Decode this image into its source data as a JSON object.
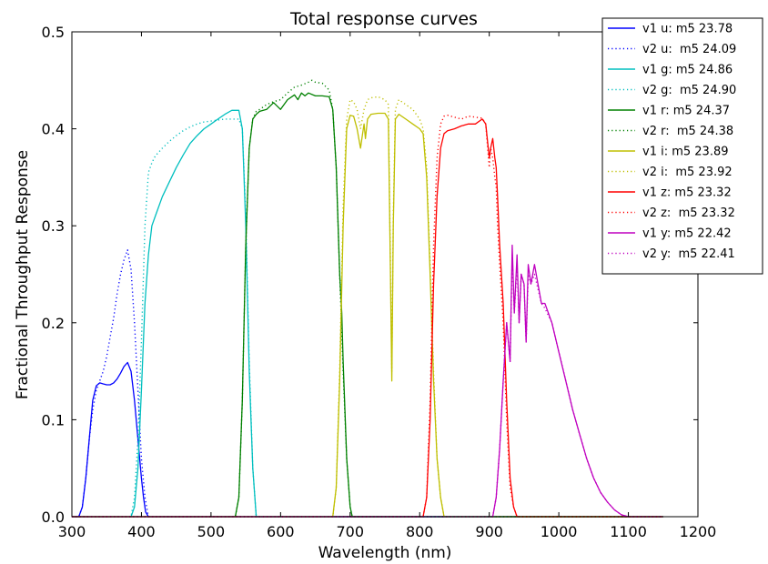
{
  "chart_data": {
    "type": "line",
    "title": "Total response curves",
    "xlabel": "Wavelength (nm)",
    "ylabel": "Fractional Throughput Response",
    "xlim": [
      300,
      1200
    ],
    "ylim": [
      0.0,
      0.5
    ],
    "xticks": [
      "300",
      "400",
      "500",
      "600",
      "700",
      "800",
      "900",
      "1000",
      "1100",
      "1200"
    ],
    "yticks": [
      "0.0",
      "0.1",
      "0.2",
      "0.3",
      "0.4",
      "0.5"
    ],
    "grid": false,
    "legend_position": "top-right",
    "series": [
      {
        "name": "v1 u: m5 23.78",
        "color": "#0000ff",
        "dash": "solid",
        "x": [
          300,
          310,
          315,
          320,
          325,
          330,
          335,
          340,
          345,
          350,
          355,
          360,
          365,
          370,
          375,
          380,
          385,
          390,
          395,
          400,
          403,
          406,
          410,
          1150
        ],
        "y": [
          0,
          0,
          0.01,
          0.04,
          0.08,
          0.12,
          0.135,
          0.138,
          0.137,
          0.136,
          0.136,
          0.138,
          0.142,
          0.148,
          0.155,
          0.159,
          0.15,
          0.12,
          0.08,
          0.04,
          0.02,
          0.005,
          0,
          0
        ]
      },
      {
        "name": "v2 u:  m5 24.09",
        "color": "#0000ff",
        "dash": "dotted",
        "x": [
          300,
          310,
          315,
          320,
          325,
          330,
          335,
          340,
          345,
          350,
          355,
          360,
          365,
          370,
          375,
          380,
          385,
          390,
          395,
          400,
          405,
          410,
          1150
        ],
        "y": [
          0,
          0,
          0.01,
          0.04,
          0.08,
          0.11,
          0.13,
          0.14,
          0.15,
          0.165,
          0.185,
          0.205,
          0.23,
          0.25,
          0.265,
          0.275,
          0.255,
          0.2,
          0.13,
          0.06,
          0.02,
          0,
          0
        ]
      },
      {
        "name": "v1 g: m5 24.86",
        "color": "#00bfbf",
        "dash": "solid",
        "x": [
          300,
          385,
          390,
          395,
          400,
          405,
          410,
          415,
          420,
          430,
          440,
          450,
          460,
          470,
          480,
          490,
          500,
          510,
          520,
          530,
          540,
          545,
          550,
          555,
          560,
          565,
          1150
        ],
        "y": [
          0,
          0,
          0.01,
          0.05,
          0.13,
          0.22,
          0.27,
          0.3,
          0.31,
          0.33,
          0.345,
          0.36,
          0.373,
          0.385,
          0.393,
          0.4,
          0.405,
          0.41,
          0.415,
          0.419,
          0.419,
          0.4,
          0.3,
          0.15,
          0.05,
          0,
          0
        ]
      },
      {
        "name": "v2 g:  m5 24.90",
        "color": "#00bfbf",
        "dash": "dotted",
        "x": [
          300,
          385,
          390,
          395,
          400,
          405,
          410,
          415,
          420,
          430,
          440,
          450,
          460,
          470,
          480,
          490,
          500,
          510,
          520,
          530,
          540,
          545,
          550,
          555,
          560,
          565,
          1150
        ],
        "y": [
          0,
          0,
          0.02,
          0.08,
          0.18,
          0.3,
          0.355,
          0.365,
          0.372,
          0.38,
          0.387,
          0.393,
          0.398,
          0.402,
          0.405,
          0.407,
          0.408,
          0.409,
          0.41,
          0.41,
          0.41,
          0.4,
          0.31,
          0.16,
          0.05,
          0,
          0
        ]
      },
      {
        "name": "v1 r: m5 24.37",
        "color": "#008000",
        "dash": "solid",
        "x": [
          300,
          535,
          540,
          545,
          550,
          555,
          560,
          565,
          570,
          580,
          590,
          600,
          610,
          620,
          625,
          630,
          635,
          640,
          650,
          660,
          670,
          675,
          680,
          685,
          688,
          690,
          695,
          700,
          703,
          1150
        ],
        "y": [
          0,
          0,
          0.02,
          0.12,
          0.28,
          0.38,
          0.41,
          0.415,
          0.418,
          0.42,
          0.427,
          0.42,
          0.43,
          0.435,
          0.43,
          0.437,
          0.434,
          0.437,
          0.434,
          0.434,
          0.433,
          0.42,
          0.36,
          0.25,
          0.21,
          0.16,
          0.06,
          0.01,
          0,
          0
        ]
      },
      {
        "name": "v2 r:  m5 24.38",
        "color": "#008000",
        "dash": "dotted",
        "x": [
          300,
          535,
          540,
          545,
          550,
          555,
          560,
          565,
          570,
          580,
          590,
          600,
          610,
          620,
          630,
          640,
          645,
          650,
          660,
          670,
          675,
          680,
          685,
          690,
          695,
          700,
          703,
          1150
        ],
        "y": [
          0,
          0,
          0.02,
          0.12,
          0.28,
          0.38,
          0.41,
          0.418,
          0.42,
          0.425,
          0.428,
          0.43,
          0.437,
          0.443,
          0.445,
          0.448,
          0.45,
          0.448,
          0.447,
          0.44,
          0.42,
          0.36,
          0.25,
          0.15,
          0.06,
          0.01,
          0,
          0
        ]
      },
      {
        "name": "v1 i: m5 23.89",
        "color": "#bfbf00",
        "dash": "solid",
        "x": [
          300,
          675,
          680,
          685,
          690,
          695,
          700,
          705,
          710,
          715,
          718,
          720,
          722,
          725,
          730,
          740,
          750,
          755,
          758,
          760,
          762,
          765,
          770,
          780,
          790,
          800,
          805,
          810,
          815,
          820,
          825,
          830,
          835,
          1150
        ],
        "y": [
          0,
          0,
          0.03,
          0.14,
          0.3,
          0.4,
          0.414,
          0.413,
          0.4,
          0.38,
          0.395,
          0.405,
          0.39,
          0.41,
          0.415,
          0.416,
          0.416,
          0.41,
          0.25,
          0.14,
          0.3,
          0.41,
          0.415,
          0.41,
          0.405,
          0.4,
          0.395,
          0.35,
          0.25,
          0.14,
          0.06,
          0.02,
          0,
          0
        ]
      },
      {
        "name": "v2 i:  m5 23.92",
        "color": "#bfbf00",
        "dash": "dotted",
        "x": [
          300,
          675,
          680,
          685,
          690,
          695,
          700,
          705,
          710,
          715,
          720,
          725,
          730,
          740,
          750,
          755,
          758,
          760,
          762,
          765,
          770,
          780,
          790,
          800,
          805,
          810,
          815,
          820,
          825,
          830,
          835,
          1150
        ],
        "y": [
          0,
          0,
          0.03,
          0.15,
          0.32,
          0.41,
          0.43,
          0.428,
          0.42,
          0.4,
          0.42,
          0.43,
          0.432,
          0.433,
          0.43,
          0.425,
          0.26,
          0.15,
          0.31,
          0.42,
          0.43,
          0.425,
          0.42,
          0.41,
          0.4,
          0.36,
          0.26,
          0.15,
          0.06,
          0.02,
          0,
          0
        ]
      },
      {
        "name": "v1 z: m5 23.32",
        "color": "#ff0000",
        "dash": "solid",
        "x": [
          300,
          805,
          810,
          815,
          820,
          825,
          830,
          835,
          840,
          850,
          860,
          870,
          880,
          890,
          895,
          900,
          902,
          905,
          908,
          910,
          912,
          915,
          920,
          925,
          930,
          935,
          940,
          1150
        ],
        "y": [
          0,
          0,
          0.02,
          0.1,
          0.24,
          0.33,
          0.38,
          0.395,
          0.398,
          0.4,
          0.403,
          0.405,
          0.405,
          0.41,
          0.405,
          0.37,
          0.38,
          0.39,
          0.37,
          0.36,
          0.33,
          0.28,
          0.22,
          0.12,
          0.04,
          0.01,
          0,
          0
        ]
      },
      {
        "name": "v2 z:  m5 23.32",
        "color": "#ff0000",
        "dash": "dotted",
        "x": [
          300,
          805,
          810,
          815,
          820,
          825,
          830,
          835,
          840,
          850,
          860,
          870,
          880,
          890,
          895,
          900,
          902,
          905,
          908,
          910,
          912,
          915,
          920,
          925,
          930,
          935,
          940,
          1150
        ],
        "y": [
          0,
          0,
          0.02,
          0.12,
          0.28,
          0.37,
          0.405,
          0.413,
          0.414,
          0.412,
          0.41,
          0.413,
          0.412,
          0.411,
          0.405,
          0.36,
          0.38,
          0.37,
          0.35,
          0.34,
          0.3,
          0.26,
          0.2,
          0.1,
          0.03,
          0.01,
          0,
          0
        ]
      },
      {
        "name": "v1 y: m5 22.42",
        "color": "#bf00bf",
        "dash": "solid",
        "x": [
          300,
          905,
          910,
          915,
          920,
          925,
          930,
          933,
          936,
          940,
          943,
          946,
          950,
          953,
          956,
          960,
          965,
          970,
          975,
          980,
          990,
          1000,
          1010,
          1020,
          1030,
          1040,
          1050,
          1060,
          1070,
          1080,
          1090,
          1100,
          1150
        ],
        "y": [
          0,
          0,
          0.02,
          0.07,
          0.14,
          0.2,
          0.16,
          0.28,
          0.21,
          0.27,
          0.2,
          0.25,
          0.24,
          0.18,
          0.26,
          0.24,
          0.26,
          0.24,
          0.22,
          0.22,
          0.2,
          0.17,
          0.14,
          0.11,
          0.085,
          0.06,
          0.04,
          0.025,
          0.015,
          0.007,
          0.002,
          0,
          0
        ]
      },
      {
        "name": "v2 y:  m5 22.41",
        "color": "#bf00bf",
        "dash": "dotted",
        "x": [
          300,
          905,
          910,
          915,
          920,
          925,
          930,
          933,
          936,
          940,
          943,
          946,
          950,
          953,
          956,
          960,
          965,
          970,
          975,
          980,
          990,
          1000,
          1010,
          1020,
          1030,
          1040,
          1050,
          1060,
          1070,
          1080,
          1090,
          1100,
          1150
        ],
        "y": [
          0,
          0,
          0.02,
          0.07,
          0.14,
          0.2,
          0.16,
          0.27,
          0.21,
          0.26,
          0.2,
          0.25,
          0.24,
          0.18,
          0.25,
          0.24,
          0.25,
          0.235,
          0.22,
          0.215,
          0.2,
          0.17,
          0.14,
          0.11,
          0.085,
          0.06,
          0.04,
          0.025,
          0.015,
          0.007,
          0.002,
          0,
          0
        ]
      }
    ]
  }
}
